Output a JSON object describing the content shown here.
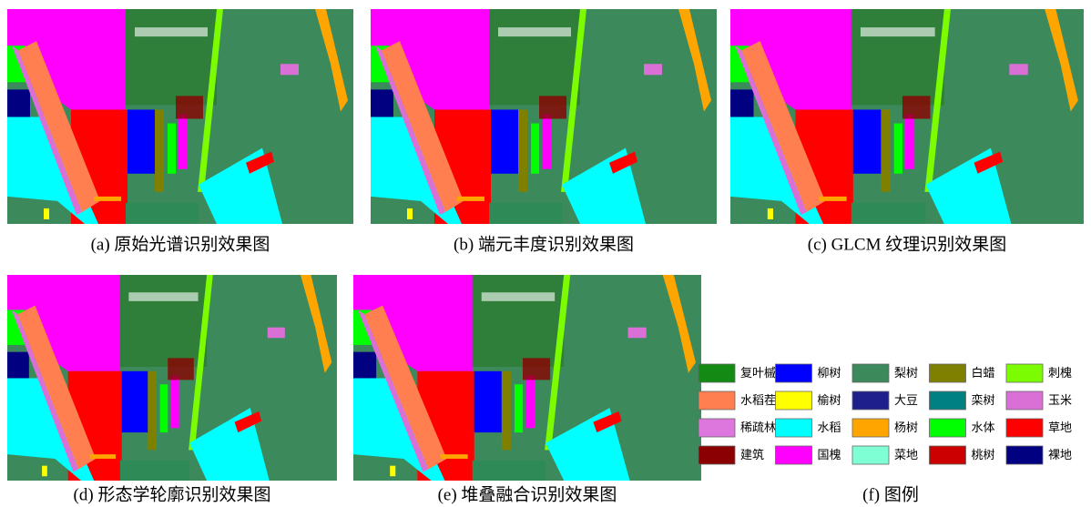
{
  "panels": [
    {
      "caption": "(a) 原始光谱识别效果图"
    },
    {
      "caption": "(b) 端元丰度识别效果图"
    },
    {
      "caption": "(c) GLCM 纹理识别效果图"
    },
    {
      "caption": "(d) 形态学轮廓识别效果图"
    },
    {
      "caption": "(e) 堆叠融合识别效果图"
    }
  ],
  "legend": {
    "caption": "(f) 图例",
    "items": [
      {
        "name": "复叶槭",
        "color": "#138a13"
      },
      {
        "name": "柳树",
        "color": "#0000ff"
      },
      {
        "name": "梨树",
        "color": "#3c8a5c"
      },
      {
        "name": "白蜡",
        "color": "#808000"
      },
      {
        "name": "刺槐",
        "color": "#7cfc00"
      },
      {
        "name": "水稻茬",
        "color": "#ff7f50"
      },
      {
        "name": "榆树",
        "color": "#ffff00"
      },
      {
        "name": "大豆",
        "color": "#1e1e8c"
      },
      {
        "name": "栾树",
        "color": "#008080"
      },
      {
        "name": "玉米",
        "color": "#da70d6"
      },
      {
        "name": "稀疏林",
        "color": "#dd77dd"
      },
      {
        "name": "水稻",
        "color": "#00ffff"
      },
      {
        "name": "杨树",
        "color": "#ffa500"
      },
      {
        "name": "水体",
        "color": "#00ff00"
      },
      {
        "name": "草地",
        "color": "#ff0000"
      },
      {
        "name": "建筑",
        "color": "#8b0000"
      },
      {
        "name": "国槐",
        "color": "#ff00ff"
      },
      {
        "name": "菜地",
        "color": "#7fffd4"
      },
      {
        "name": "桃树",
        "color": "#cc0000"
      },
      {
        "name": "裸地",
        "color": "#000080"
      }
    ]
  }
}
